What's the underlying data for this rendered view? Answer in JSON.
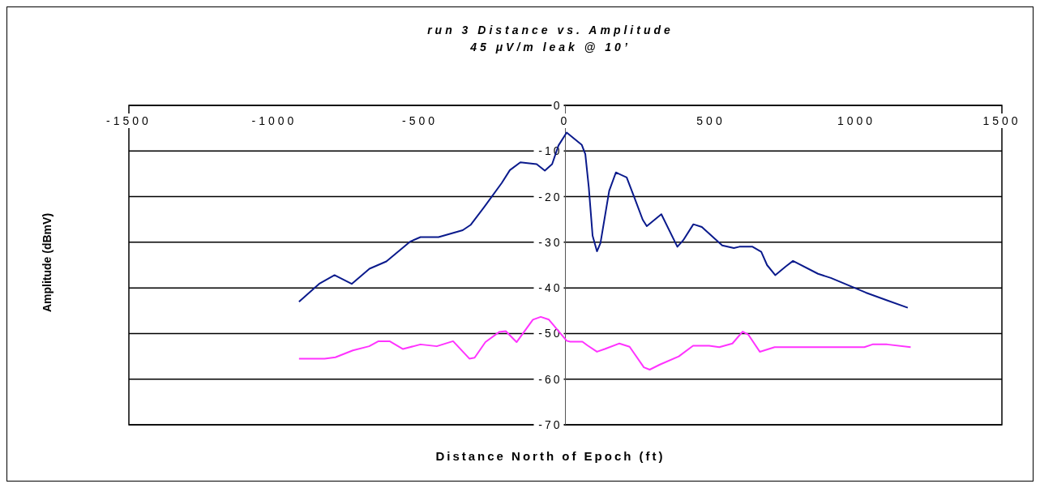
{
  "chart_data": {
    "type": "line",
    "title": "run 3 Distance vs. Amplitude",
    "subtitle": "45 μV/m leak @ 10’",
    "xlabel": "Distance North of Epoch (ft)",
    "ylabel": "Amplitude (dBmV)",
    "xlim": [
      -1500,
      1500
    ],
    "xticks": [
      -1500,
      -1000,
      -500,
      0,
      500,
      1000,
      1500
    ],
    "ylim": [
      -70,
      0
    ],
    "yticks": [
      0,
      -10,
      -20,
      -30,
      -40,
      -50,
      -60,
      -70
    ],
    "grid": "y",
    "series": [
      {
        "color": "#0a1a8c",
        "x": [
          -916,
          -847,
          -794,
          -735,
          -674,
          -616,
          -535,
          -499,
          -437,
          -354,
          -326,
          -276,
          -220,
          -192,
          -156,
          -100,
          -72,
          -47,
          -25,
          3,
          55,
          67,
          79,
          92,
          107,
          119,
          149,
          172,
          209,
          238,
          264,
          278,
          328,
          383,
          403,
          438,
          467,
          537,
          577,
          596,
          641,
          671,
          691,
          719,
          755,
          780,
          866,
          910,
          1030,
          1099,
          1174
        ],
        "values": [
          -43.0,
          -39.1,
          -37.2,
          -39.1,
          -35.8,
          -34.2,
          -29.9,
          -28.9,
          -28.9,
          -27.4,
          -26.2,
          -22.0,
          -17.1,
          -14.3,
          -12.6,
          -13.0,
          -14.4,
          -13.0,
          -8.9,
          -6.1,
          -8.8,
          -10.8,
          -18.1,
          -28.6,
          -32.0,
          -30.2,
          -18.8,
          -14.8,
          -15.9,
          -20.7,
          -25.1,
          -26.5,
          -23.9,
          -31.0,
          -29.6,
          -26.1,
          -26.7,
          -30.7,
          -31.3,
          -31.0,
          -31.0,
          -32.1,
          -35.0,
          -37.2,
          -35.3,
          -34.1,
          -36.9,
          -37.8,
          -41.0,
          -42.6,
          -44.3
        ]
      },
      {
        "color": "#ff33ff",
        "x": [
          -916,
          -828,
          -791,
          -731,
          -675,
          -643,
          -605,
          -559,
          -499,
          -443,
          -387,
          -331,
          -313,
          -276,
          -229,
          -206,
          -169,
          -113,
          -86,
          -58,
          3,
          15,
          57,
          74,
          107,
          134,
          184,
          219,
          268,
          288,
          323,
          388,
          437,
          492,
          527,
          572,
          607,
          627,
          666,
          717,
          1025,
          1053,
          1103,
          1184
        ],
        "values": [
          -55.4,
          -55.4,
          -55.1,
          -53.6,
          -52.7,
          -51.6,
          -51.6,
          -53.3,
          -52.3,
          -52.7,
          -51.6,
          -55.4,
          -55.2,
          -51.8,
          -49.6,
          -49.4,
          -51.8,
          -46.9,
          -46.3,
          -46.9,
          -51.5,
          -51.7,
          -51.7,
          -52.5,
          -53.9,
          -53.3,
          -52.1,
          -52.8,
          -57.3,
          -57.8,
          -56.7,
          -54.9,
          -52.6,
          -52.6,
          -52.9,
          -52.1,
          -49.5,
          -50.2,
          -53.9,
          -52.9,
          -52.9,
          -52.3,
          -52.3,
          -52.9
        ]
      }
    ]
  }
}
